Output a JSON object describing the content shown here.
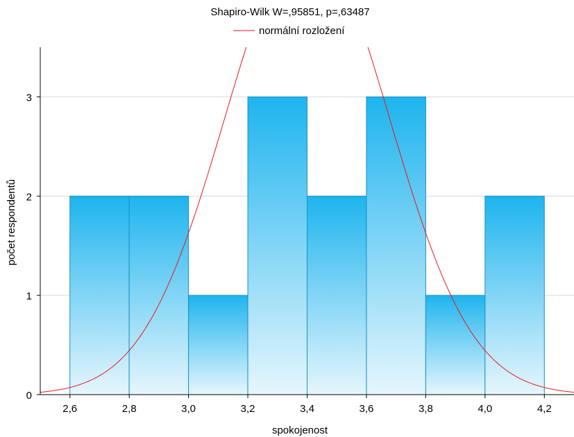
{
  "chart_data": {
    "type": "bar",
    "title": "Shapiro-Wilk W=,95851, p=,63487",
    "xlabel": "spokojenost",
    "ylabel": "počet respondentů",
    "legend": {
      "label": "normální rozložení",
      "position": "top-center",
      "color": "#e31a1c"
    },
    "xlim": [
      2.5,
      4.3
    ],
    "ylim": [
      0,
      3.5
    ],
    "bin_width": 0.2,
    "bins": [
      {
        "from": 2.6,
        "to": 2.8,
        "count": 2
      },
      {
        "from": 2.8,
        "to": 3.0,
        "count": 2
      },
      {
        "from": 3.0,
        "to": 3.2,
        "count": 1
      },
      {
        "from": 3.2,
        "to": 3.4,
        "count": 3
      },
      {
        "from": 3.4,
        "to": 3.6,
        "count": 2
      },
      {
        "from": 3.6,
        "to": 3.8,
        "count": 3
      },
      {
        "from": 3.8,
        "to": 4.0,
        "count": 1
      },
      {
        "from": 4.0,
        "to": 4.2,
        "count": 2
      }
    ],
    "x_ticks": [
      {
        "value": 2.6,
        "label": "2,6"
      },
      {
        "value": 2.8,
        "label": "2,8"
      },
      {
        "value": 3.0,
        "label": "3,0"
      },
      {
        "value": 3.2,
        "label": "3,2"
      },
      {
        "value": 3.4,
        "label": "3,4"
      },
      {
        "value": 3.6,
        "label": "3,6"
      },
      {
        "value": 3.8,
        "label": "3,8"
      },
      {
        "value": 4.0,
        "label": "4,0"
      },
      {
        "value": 4.2,
        "label": "4,2"
      }
    ],
    "y_ticks": [
      {
        "value": 0,
        "label": "0"
      },
      {
        "value": 1,
        "label": "1"
      },
      {
        "value": 2,
        "label": "2"
      },
      {
        "value": 3,
        "label": "3"
      }
    ],
    "normal_curve": {
      "mean": 3.4,
      "sd": 0.2775,
      "n": 16
    },
    "grid": "horizontal",
    "colors": {
      "bar_top": "#1eb4ee",
      "bar_bottom": "#e6f6fd",
      "bar_edge": "#1a8fc4",
      "grid": "#d9d9d9",
      "curve": "#e31a1c"
    }
  }
}
